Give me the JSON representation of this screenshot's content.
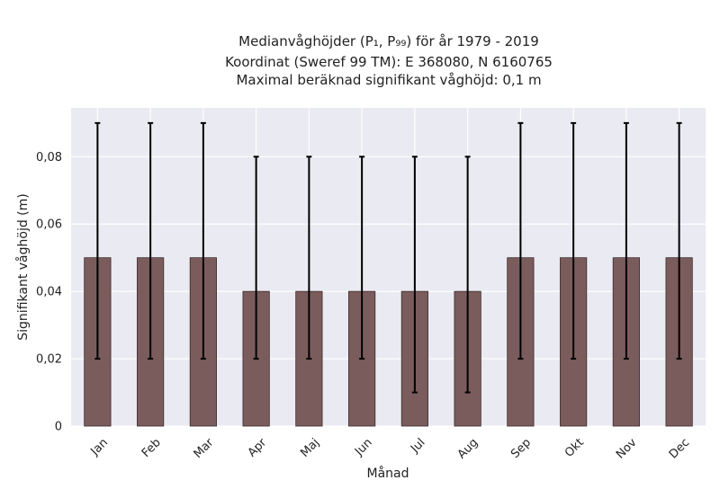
{
  "chart_data": {
    "type": "bar",
    "title_lines": [
      "Medianvåghöjder (P₁, P₉₉) för år 1979 - 2019",
      "Koordinat (Sweref 99 TM): E 368080, N 6160765",
      "Maximal beräknad signifikant våghöjd: 0,1 m"
    ],
    "xlabel": "Månad",
    "ylabel": "Signifikant våghöjd (m)",
    "categories": [
      "Jan",
      "Feb",
      "Mar",
      "Apr",
      "Maj",
      "Jun",
      "Jul",
      "Aug",
      "Sep",
      "Okt",
      "Nov",
      "Dec"
    ],
    "values": [
      0.05,
      0.05,
      0.05,
      0.04,
      0.04,
      0.04,
      0.04,
      0.04,
      0.05,
      0.05,
      0.05,
      0.05
    ],
    "p1": [
      0.02,
      0.02,
      0.02,
      0.02,
      0.02,
      0.02,
      0.01,
      0.01,
      0.02,
      0.02,
      0.02,
      0.02
    ],
    "p99": [
      0.09,
      0.09,
      0.09,
      0.08,
      0.08,
      0.08,
      0.08,
      0.08,
      0.09,
      0.09,
      0.09,
      0.09
    ],
    "yticks": [
      0,
      0.02,
      0.04,
      0.06,
      0.08
    ],
    "ytick_labels": [
      "0",
      "0,02",
      "0,04",
      "0,06",
      "0,08"
    ],
    "ylim": [
      0,
      0.0945
    ],
    "grid": true,
    "colors": {
      "bar": "#7b5c5c",
      "bar_edge": "#3a2a2a",
      "errorbar": "#000000",
      "plot_background": "#eaeaf2",
      "grid": "#ffffff"
    }
  }
}
